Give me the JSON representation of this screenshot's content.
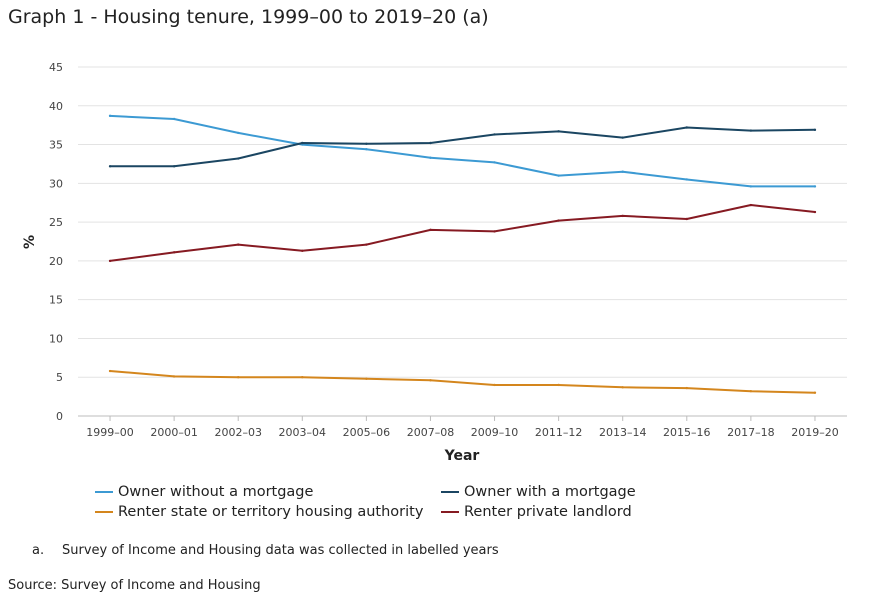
{
  "title": "Graph 1 - Housing tenure, 1999–00 to 2019–20 (a)",
  "chart_data": {
    "type": "line",
    "title": "Graph 1 - Housing tenure, 1999–00 to 2019–20 (a)",
    "xlabel": "Year",
    "ylabel": "%",
    "ylim": [
      0,
      45
    ],
    "yticks": [
      "0",
      "5",
      "10",
      "15",
      "20",
      "25",
      "30",
      "35",
      "40",
      "45"
    ],
    "grid": true,
    "legend_position": "bottom",
    "categories": [
      "1999–00",
      "2000–01",
      "2002–03",
      "2003–04",
      "2005–06",
      "2007–08",
      "2009–10",
      "2011–12",
      "2013–14",
      "2015–16",
      "2017–18",
      "2019–20"
    ],
    "series": [
      {
        "name": "Owner without a mortgage",
        "color": "#3c9ad3",
        "values": [
          38.7,
          38.3,
          36.5,
          35.0,
          34.4,
          33.3,
          32.7,
          31.0,
          31.5,
          30.5,
          29.6,
          29.6
        ]
      },
      {
        "name": "Owner with a mortgage",
        "color": "#1b4662",
        "values": [
          32.2,
          32.2,
          33.2,
          35.2,
          35.1,
          35.2,
          36.3,
          36.7,
          35.9,
          37.2,
          36.8,
          36.9
        ]
      },
      {
        "name": "Renter state or territory housing authority",
        "color": "#d4861d",
        "values": [
          5.8,
          5.1,
          5.0,
          5.0,
          4.8,
          4.6,
          4.0,
          4.0,
          3.7,
          3.6,
          3.2,
          3.0
        ]
      },
      {
        "name": "Renter private landlord",
        "color": "#861a22",
        "values": [
          20.0,
          21.1,
          22.1,
          21.3,
          22.1,
          24.0,
          23.8,
          25.2,
          25.8,
          25.4,
          27.2,
          26.3
        ]
      }
    ]
  },
  "footnote": {
    "marker": "a.",
    "text": "Survey of Income and Housing data was collected in labelled years"
  },
  "source": "Source: Survey of Income and Housing"
}
